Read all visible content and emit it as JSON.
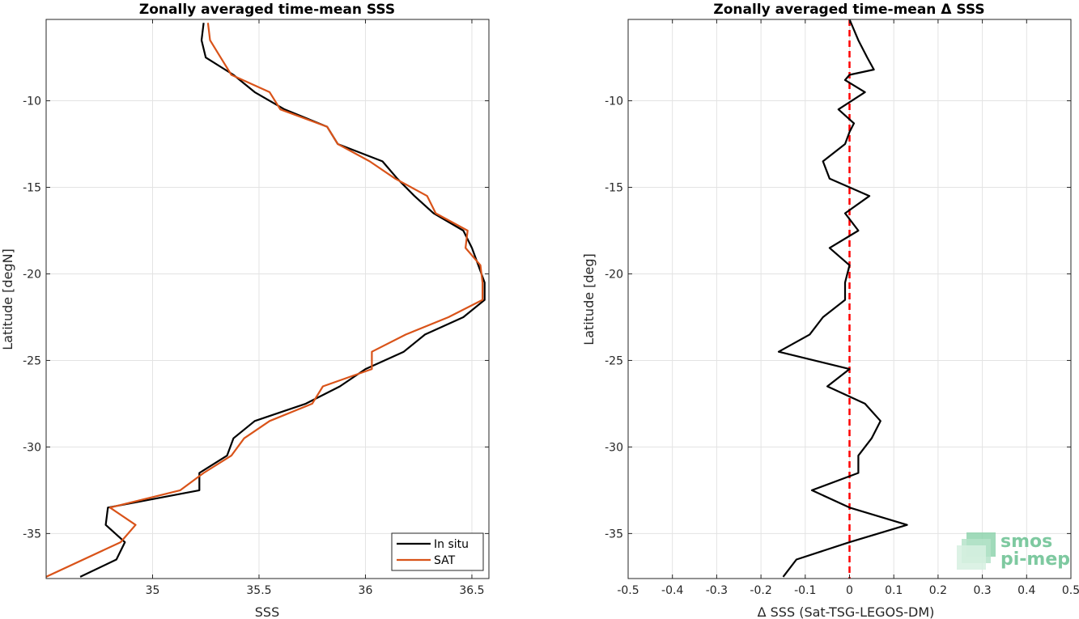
{
  "chart_data": [
    {
      "type": "line",
      "title": "Zonally averaged time-mean SSS",
      "xlabel": "SSS",
      "ylabel": "Latitude [degN]",
      "xlim": [
        34.5,
        36.58
      ],
      "ylim": [
        -37.6,
        -5.3
      ],
      "xticks": [
        35,
        35.5,
        36,
        36.5
      ],
      "xtick_labels": [
        "35",
        "35.5",
        "36",
        "36.5"
      ],
      "yticks": [
        -35,
        -30,
        -25,
        -20,
        -15,
        -10
      ],
      "ytick_labels": [
        "-35",
        "-30",
        "-25",
        "-20",
        "-15",
        "-10"
      ],
      "grid": true,
      "legend": "bottom-right",
      "series": [
        {
          "name": "In situ",
          "color": "#000000",
          "points": [
            [
              35.24,
              -5.5
            ],
            [
              35.23,
              -6.5
            ],
            [
              35.25,
              -7.5
            ],
            [
              35.38,
              -8.5
            ],
            [
              35.48,
              -9.5
            ],
            [
              35.62,
              -10.5
            ],
            [
              35.82,
              -11.5
            ],
            [
              35.87,
              -12.5
            ],
            [
              36.08,
              -13.5
            ],
            [
              36.15,
              -14.5
            ],
            [
              36.23,
              -15.5
            ],
            [
              36.32,
              -16.5
            ],
            [
              36.46,
              -17.5
            ],
            [
              36.5,
              -18.5
            ],
            [
              36.53,
              -19.5
            ],
            [
              36.56,
              -20.5
            ],
            [
              36.56,
              -21.5
            ],
            [
              36.46,
              -22.5
            ],
            [
              36.28,
              -23.5
            ],
            [
              36.18,
              -24.5
            ],
            [
              36.0,
              -25.5
            ],
            [
              35.88,
              -26.5
            ],
            [
              35.72,
              -27.5
            ],
            [
              35.48,
              -28.5
            ],
            [
              35.38,
              -29.5
            ],
            [
              35.35,
              -30.5
            ],
            [
              35.22,
              -31.5
            ],
            [
              35.22,
              -32.5
            ],
            [
              34.79,
              -33.5
            ],
            [
              34.78,
              -34.5
            ],
            [
              34.87,
              -35.5
            ],
            [
              34.83,
              -36.5
            ],
            [
              34.66,
              -37.5
            ]
          ]
        },
        {
          "name": "SAT",
          "color": "#D95319",
          "points": [
            [
              35.26,
              -5.5
            ],
            [
              35.27,
              -6.5
            ],
            [
              35.32,
              -7.5
            ],
            [
              35.37,
              -8.5
            ],
            [
              35.55,
              -9.5
            ],
            [
              35.6,
              -10.5
            ],
            [
              35.82,
              -11.5
            ],
            [
              35.87,
              -12.5
            ],
            [
              36.02,
              -13.5
            ],
            [
              36.14,
              -14.5
            ],
            [
              36.29,
              -15.5
            ],
            [
              36.33,
              -16.5
            ],
            [
              36.48,
              -17.5
            ],
            [
              36.47,
              -18.5
            ],
            [
              36.54,
              -19.5
            ],
            [
              36.55,
              -20.5
            ],
            [
              36.55,
              -21.5
            ],
            [
              36.39,
              -22.5
            ],
            [
              36.19,
              -23.5
            ],
            [
              36.03,
              -24.5
            ],
            [
              36.03,
              -25.5
            ],
            [
              35.8,
              -26.5
            ],
            [
              35.75,
              -27.5
            ],
            [
              35.55,
              -28.5
            ],
            [
              35.43,
              -29.5
            ],
            [
              35.37,
              -30.5
            ],
            [
              35.24,
              -31.5
            ],
            [
              35.13,
              -32.5
            ],
            [
              34.8,
              -33.5
            ],
            [
              34.92,
              -34.5
            ],
            [
              34.85,
              -35.5
            ],
            [
              34.5,
              -37.5
            ]
          ]
        }
      ]
    },
    {
      "type": "line",
      "title": "Zonally averaged time-mean Δ SSS",
      "xlabel": "Δ SSS (Sat-TSG-LEGOS-DM)",
      "ylabel": "Latitude [deg]",
      "xlim": [
        -0.5,
        0.5
      ],
      "ylim": [
        -37.6,
        -5.3
      ],
      "xticks": [
        -0.5,
        -0.4,
        -0.3,
        -0.2,
        -0.1,
        0,
        0.1,
        0.2,
        0.3,
        0.4,
        0.5
      ],
      "xtick_labels": [
        "-0.5",
        "-0.4",
        "-0.3",
        "-0.2",
        "-0.1",
        "0",
        "0.1",
        "0.2",
        "0.3",
        "0.4",
        "0.5"
      ],
      "yticks": [
        -35,
        -30,
        -25,
        -20,
        -15,
        -10
      ],
      "ytick_labels": [
        "-35",
        "-30",
        "-25",
        "-20",
        "-15",
        "-10"
      ],
      "grid": true,
      "reference_line": {
        "x": 0,
        "color": "#FF0000",
        "style": "dashed"
      },
      "series": [
        {
          "color": "#000000",
          "points": [
            [
              0.0,
              -5.3
            ],
            [
              0.02,
              -6.5
            ],
            [
              0.04,
              -7.5
            ],
            [
              0.055,
              -8.2
            ],
            [
              0.0,
              -8.5
            ],
            [
              -0.01,
              -8.8
            ],
            [
              0.035,
              -9.5
            ],
            [
              -0.025,
              -10.5
            ],
            [
              0.01,
              -11.3
            ],
            [
              0.0,
              -11.8
            ],
            [
              -0.01,
              -12.5
            ],
            [
              -0.06,
              -13.5
            ],
            [
              -0.045,
              -14.5
            ],
            [
              0.0,
              -15.0
            ],
            [
              0.045,
              -15.5
            ],
            [
              -0.01,
              -16.5
            ],
            [
              0.02,
              -17.5
            ],
            [
              -0.045,
              -18.5
            ],
            [
              0.0,
              -19.5
            ],
            [
              -0.01,
              -20.5
            ],
            [
              -0.01,
              -21.5
            ],
            [
              -0.06,
              -22.5
            ],
            [
              -0.09,
              -23.5
            ],
            [
              -0.16,
              -24.5
            ],
            [
              0.0,
              -25.5
            ],
            [
              -0.05,
              -26.5
            ],
            [
              0.035,
              -27.5
            ],
            [
              0.07,
              -28.5
            ],
            [
              0.05,
              -29.5
            ],
            [
              0.02,
              -30.5
            ],
            [
              0.02,
              -31.5
            ],
            [
              -0.085,
              -32.5
            ],
            [
              0.0,
              -33.5
            ],
            [
              0.13,
              -34.5
            ],
            [
              0.0,
              -35.5
            ],
            [
              -0.12,
              -36.5
            ],
            [
              -0.15,
              -37.5
            ]
          ]
        }
      ]
    }
  ],
  "legend": {
    "items": [
      {
        "label": "In situ",
        "color": "#000000"
      },
      {
        "label": "SAT",
        "color": "#D95319"
      }
    ]
  },
  "logo": {
    "line1": "smos",
    "line2": "pi-mep",
    "color": "#7ec9a0"
  }
}
